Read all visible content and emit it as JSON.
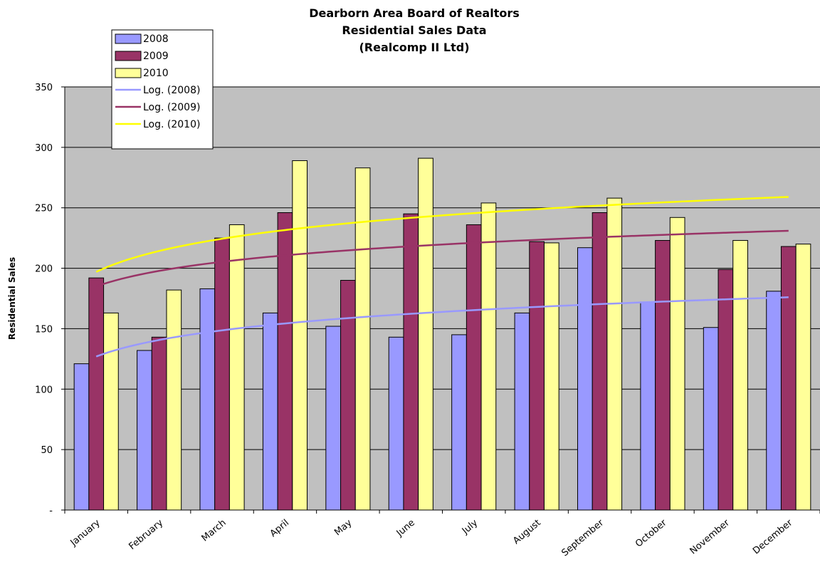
{
  "chart_data": {
    "type": "bar",
    "title_lines": [
      "Dearborn Area Board of Realtors",
      "Residential Sales Data",
      "(Realcomp II Ltd)"
    ],
    "xlabel": "",
    "ylabel": "Residential Sales",
    "ylim": [
      0,
      350
    ],
    "yticks": [
      {
        "value": 0,
        "label": "-"
      },
      {
        "value": 50,
        "label": "50"
      },
      {
        "value": 100,
        "label": "100"
      },
      {
        "value": 150,
        "label": "150"
      },
      {
        "value": 200,
        "label": "200"
      },
      {
        "value": 250,
        "label": "250"
      },
      {
        "value": 300,
        "label": "300"
      },
      {
        "value": 350,
        "label": "350"
      }
    ],
    "grid": true,
    "legend_position": "top-left",
    "categories": [
      "January",
      "February",
      "March",
      "April",
      "May",
      "June",
      "July",
      "August",
      "September",
      "October",
      "November",
      "December"
    ],
    "series": [
      {
        "name": "2008",
        "color": "#9999ff",
        "values": [
          121,
          132,
          183,
          163,
          152,
          143,
          145,
          163,
          217,
          172,
          151,
          181
        ]
      },
      {
        "name": "2009",
        "color": "#993366",
        "values": [
          192,
          143,
          225,
          246,
          190,
          245,
          236,
          222,
          246,
          223,
          199,
          218
        ]
      },
      {
        "name": "2010",
        "color": "#ffff99",
        "values": [
          163,
          182,
          236,
          289,
          283,
          291,
          254,
          221,
          258,
          242,
          223,
          220
        ]
      }
    ],
    "trendlines": [
      {
        "name": "Log. (2008)",
        "color": "#9999ff",
        "type": "logarithmic",
        "start": 127,
        "end": 176
      },
      {
        "name": "Log. (2009)",
        "color": "#993366",
        "type": "logarithmic",
        "start": 185,
        "end": 231
      },
      {
        "name": "Log. (2010)",
        "color": "#ffff00",
        "type": "logarithmic",
        "start": 197,
        "end": 259
      }
    ]
  }
}
